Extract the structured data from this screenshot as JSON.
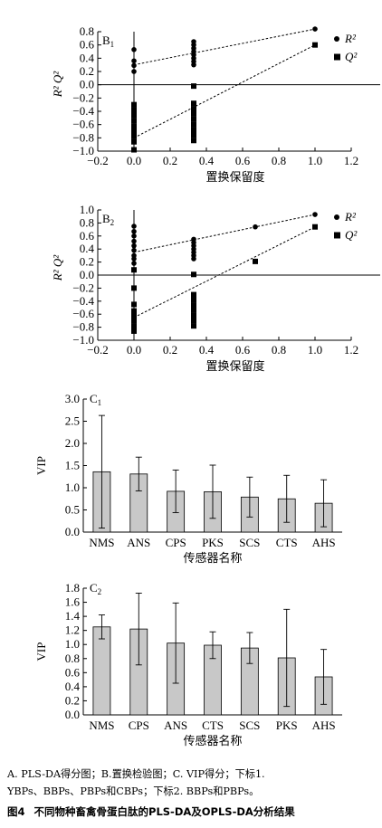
{
  "chart_data": [
    {
      "panel_label": "B1",
      "type": "scatter",
      "xlabel": "置换保留度",
      "ylabel": "R² / Q²",
      "xlim": [
        -0.2,
        1.2
      ],
      "ylim": [
        -1.0,
        0.8
      ],
      "xticks": [
        "−0.2",
        "0.0",
        "0.2",
        "0.4",
        "0.6",
        "0.8",
        "1.0",
        "1.2"
      ],
      "yticks": [
        "0.8",
        "0.6",
        "0.4",
        "0.2",
        "0.0",
        "−0.2",
        "−0.4",
        "−0.6",
        "−0.8",
        "−1.0"
      ],
      "series": [
        {
          "name": "R²",
          "marker": "circle",
          "points": [
            [
              0.0,
              0.53
            ],
            [
              0.0,
              0.36
            ],
            [
              0.0,
              0.29
            ],
            [
              0.0,
              0.2
            ],
            [
              0.33,
              0.65
            ],
            [
              0.33,
              0.6
            ],
            [
              0.33,
              0.55
            ],
            [
              0.33,
              0.5
            ],
            [
              0.33,
              0.45
            ],
            [
              0.33,
              0.4
            ],
            [
              0.33,
              0.35
            ],
            [
              0.33,
              0.3
            ],
            [
              1.0,
              0.84
            ]
          ],
          "regression": [
            [
              0.0,
              0.3
            ],
            [
              1.0,
              0.84
            ]
          ]
        },
        {
          "name": "Q²",
          "marker": "square",
          "points": [
            [
              0.0,
              -0.3
            ],
            [
              0.0,
              -0.38
            ],
            [
              0.0,
              -0.46
            ],
            [
              0.0,
              -0.54
            ],
            [
              0.0,
              -0.62
            ],
            [
              0.0,
              -0.7
            ],
            [
              0.0,
              -0.78
            ],
            [
              0.0,
              -0.86
            ],
            [
              0.0,
              -0.98
            ],
            [
              0.33,
              -0.02
            ],
            [
              0.33,
              -0.28
            ],
            [
              0.33,
              -0.36
            ],
            [
              0.33,
              -0.44
            ],
            [
              0.33,
              -0.52
            ],
            [
              0.33,
              -0.6
            ],
            [
              0.33,
              -0.68
            ],
            [
              0.33,
              -0.76
            ],
            [
              0.33,
              -0.84
            ],
            [
              1.0,
              0.6
            ]
          ],
          "regression": [
            [
              0.0,
              -0.8
            ],
            [
              1.0,
              0.6
            ]
          ]
        }
      ]
    },
    {
      "panel_label": "B2",
      "type": "scatter",
      "xlabel": "置换保留度",
      "ylabel": "R² / Q²",
      "xlim": [
        -0.2,
        1.2
      ],
      "ylim": [
        -1.0,
        1.0
      ],
      "xticks": [
        "−0.2",
        "0.0",
        "0.2",
        "0.4",
        "0.6",
        "0.8",
        "1.0",
        "1.2"
      ],
      "yticks": [
        "1.0",
        "0.8",
        "0.6",
        "0.4",
        "0.2",
        "0.0",
        "−0.2",
        "−0.4",
        "−0.6",
        "−0.8",
        "−1.0"
      ],
      "series": [
        {
          "name": "R²",
          "marker": "circle",
          "points": [
            [
              0.0,
              0.75
            ],
            [
              0.0,
              0.67
            ],
            [
              0.0,
              0.6
            ],
            [
              0.0,
              0.52
            ],
            [
              0.0,
              0.45
            ],
            [
              0.0,
              0.38
            ],
            [
              0.0,
              0.3
            ],
            [
              0.0,
              0.25
            ],
            [
              0.0,
              0.18
            ],
            [
              0.33,
              0.55
            ],
            [
              0.33,
              0.5
            ],
            [
              0.33,
              0.45
            ],
            [
              0.33,
              0.4
            ],
            [
              0.33,
              0.35
            ],
            [
              0.33,
              0.3
            ],
            [
              0.33,
              0.25
            ],
            [
              0.67,
              0.74
            ],
            [
              1.0,
              0.93
            ]
          ],
          "regression": [
            [
              0.0,
              0.35
            ],
            [
              1.0,
              0.93
            ]
          ]
        },
        {
          "name": "Q²",
          "marker": "square",
          "points": [
            [
              0.0,
              0.08
            ],
            [
              0.0,
              -0.45
            ],
            [
              0.0,
              -0.2
            ],
            [
              0.0,
              -0.55
            ],
            [
              0.0,
              -0.62
            ],
            [
              0.0,
              -0.7
            ],
            [
              0.0,
              -0.78
            ],
            [
              0.0,
              -0.86
            ],
            [
              0.33,
              0.01
            ],
            [
              0.33,
              -0.3
            ],
            [
              0.33,
              -0.38
            ],
            [
              0.33,
              -0.46
            ],
            [
              0.33,
              -0.54
            ],
            [
              0.33,
              -0.62
            ],
            [
              0.33,
              -0.7
            ],
            [
              0.33,
              -0.78
            ],
            [
              0.67,
              0.21
            ],
            [
              1.0,
              0.74
            ]
          ],
          "regression": [
            [
              0.0,
              -0.65
            ],
            [
              1.0,
              0.74
            ]
          ]
        }
      ]
    },
    {
      "panel_label": "C1",
      "type": "bar",
      "xlabel": "传感器名称",
      "ylabel": "VIP",
      "ylim": [
        0.0,
        3.0
      ],
      "yticks": [
        "3.0",
        "2.5",
        "2.0",
        "1.5",
        "1.0",
        "0.5",
        "0.0"
      ],
      "categories": [
        "NMS",
        "ANS",
        "CPS",
        "PKS",
        "SCS",
        "CTS",
        "AHS"
      ],
      "values": [
        1.36,
        1.31,
        0.92,
        0.91,
        0.79,
        0.75,
        0.65
      ],
      "errors": [
        1.27,
        0.38,
        0.48,
        0.6,
        0.45,
        0.53,
        0.53
      ]
    },
    {
      "panel_label": "C2",
      "type": "bar",
      "xlabel": "传感器名称",
      "ylabel": "VIP",
      "ylim": [
        0.0,
        1.8
      ],
      "yticks": [
        "1.8",
        "1.6",
        "1.4",
        "1.2",
        "1.0",
        "0.8",
        "0.6",
        "0.4",
        "0.2",
        "0.0"
      ],
      "categories": [
        "NMS",
        "CPS",
        "ANS",
        "CTS",
        "SCS",
        "PKS",
        "AHS"
      ],
      "values": [
        1.25,
        1.22,
        1.02,
        0.99,
        0.95,
        0.81,
        0.54
      ],
      "errors": [
        0.17,
        0.51,
        0.57,
        0.19,
        0.22,
        0.69,
        0.39
      ]
    }
  ],
  "caption": {
    "line1": "A. PLS-DA得分图；B.置换检验图；C. VIP得分；下标1.",
    "line2": "YBPs、BBPs、PBPs和CBPs；下标2. BBPs和PBPs。"
  },
  "figure_title": {
    "number": "图4",
    "text": "不同物种畜禽骨蛋白肽的PLS-DA及OPLS-DA分析结果"
  },
  "colors": {
    "bar_fill": "#c8c8c8",
    "ink": "#000000"
  }
}
